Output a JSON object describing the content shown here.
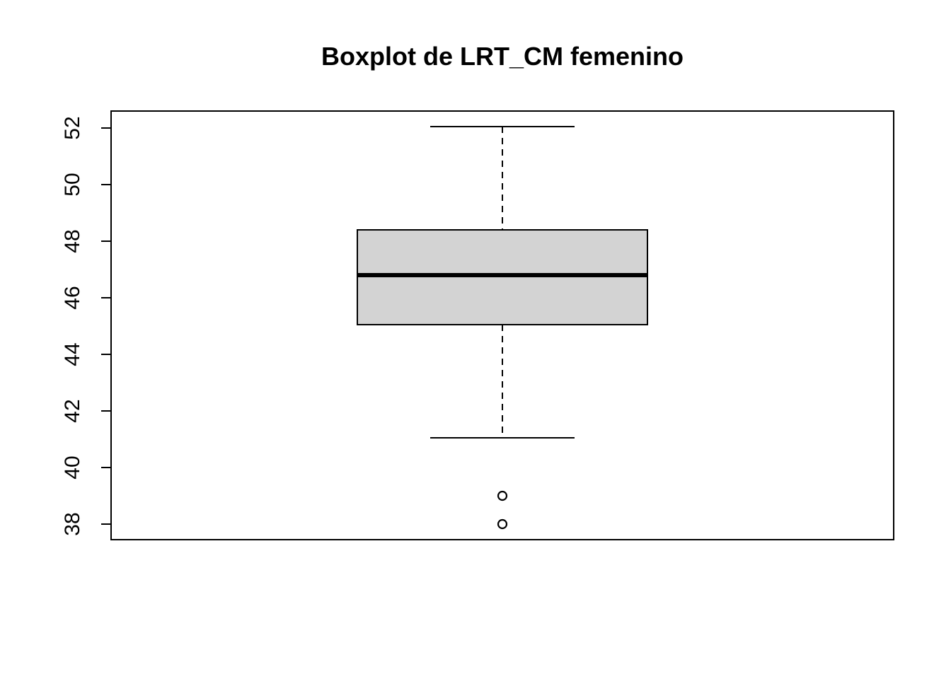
{
  "chart_data": {
    "type": "boxplot",
    "title": "Boxplot de LRT_CM femenino",
    "xlabel": "",
    "ylabel": "",
    "ylim": [
      37.45,
      52.6
    ],
    "yticks": [
      38,
      40,
      42,
      44,
      46,
      48,
      50,
      52
    ],
    "ytick_labels": [
      "38",
      "40",
      "42",
      "44",
      "46",
      "48",
      "50",
      "52"
    ],
    "grid": false,
    "legend": "none",
    "box": {
      "whisker_low": 41.05,
      "q1": 45.05,
      "median": 46.8,
      "q3": 48.4,
      "whisker_high": 52.05,
      "outliers": [
        39,
        38
      ]
    },
    "colors": {
      "box_fill": "#d3d3d3",
      "stroke": "#000000",
      "background": "#ffffff"
    }
  }
}
